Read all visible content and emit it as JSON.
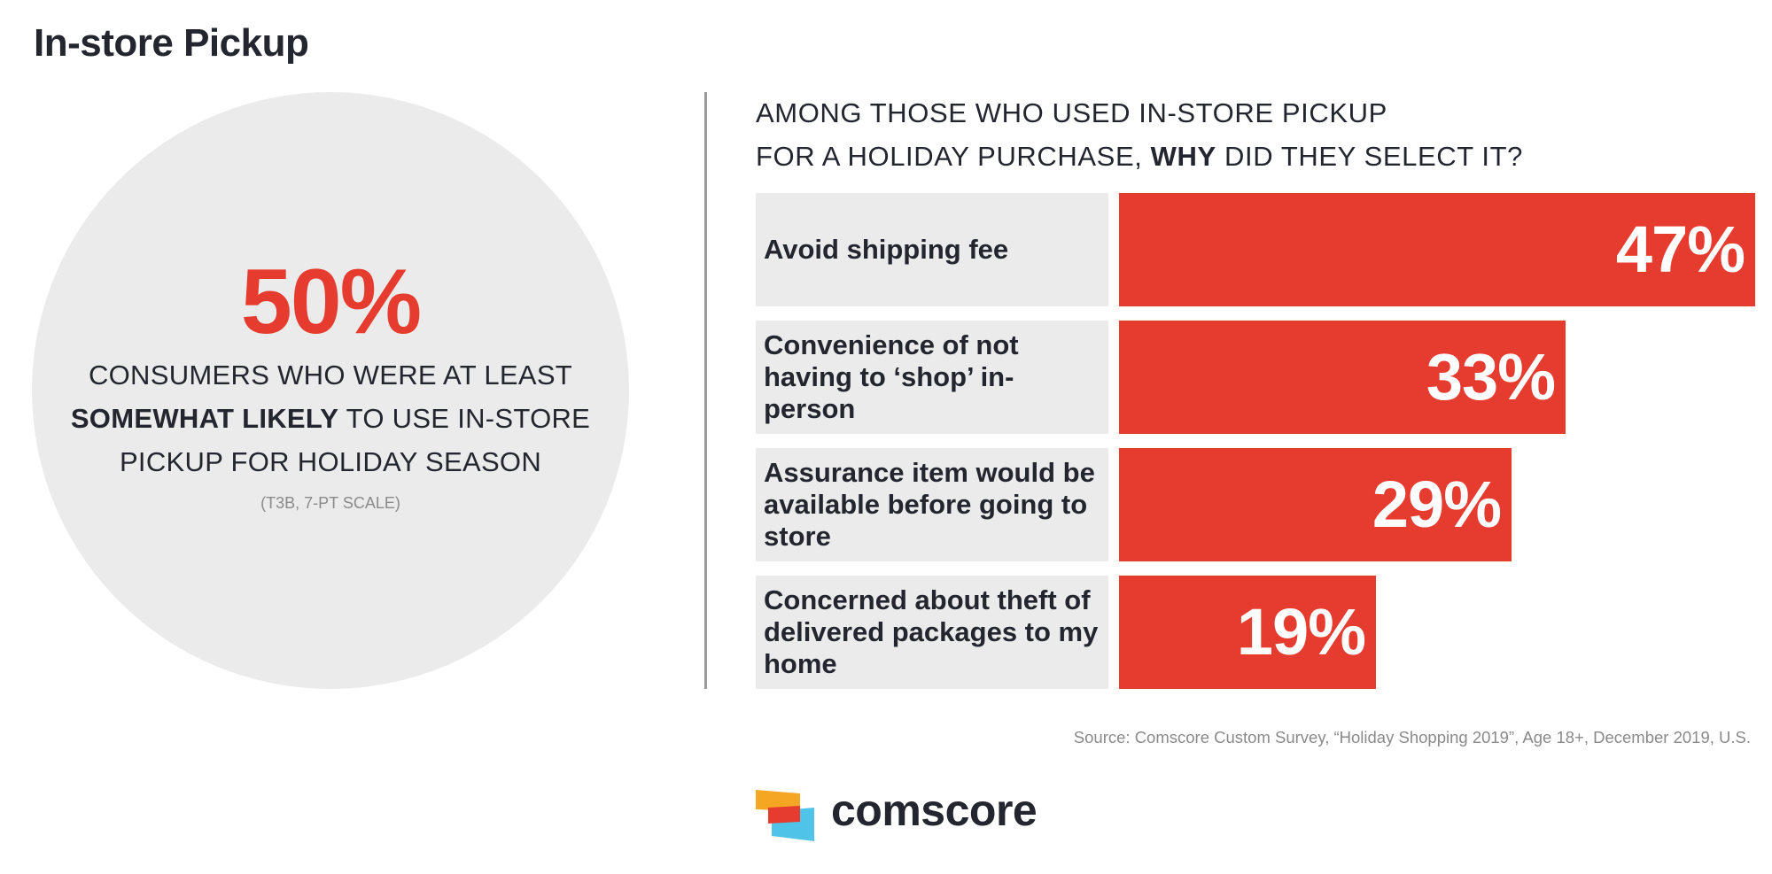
{
  "page_title": "In-store Pickup",
  "left_panel": {
    "stat_value": "50%",
    "description_line1": "CONSUMERS WHO WERE AT LEAST",
    "description_bold": "SOMEWHAT LIKELY",
    "description_line2": "TO USE IN-STORE",
    "description_line3": "PICKUP FOR HOLIDAY SEASON",
    "note": "(T3B, 7-PT SCALE)"
  },
  "question": {
    "line1": "AMONG THOSE WHO USED IN-STORE PICKUP",
    "line2_prefix": "FOR A HOLIDAY PURCHASE,",
    "line2_bold": "WHY",
    "line2_suffix": "DID THEY SELECT IT?"
  },
  "chart_data": {
    "type": "bar",
    "orientation": "horizontal",
    "categories": [
      "Avoid shipping fee",
      "Convenience of not having to ‘shop’ in-person",
      "Assurance item would be available before going to store",
      "Concerned about theft of delivered packages to my home"
    ],
    "values": [
      47,
      33,
      29,
      19
    ],
    "value_labels": [
      "47%",
      "33%",
      "29%",
      "19%"
    ],
    "unit": "%",
    "xlim": [
      0,
      47
    ],
    "bar_color": "#e63c2f",
    "label_background": "#ebebeb"
  },
  "source": "Source: Comscore Custom Survey, “Holiday Shopping 2019”, Age 18+, December 2019, U.S.",
  "brand": {
    "name": "comscore",
    "colors": {
      "orange": "#f5a623",
      "red": "#e63c2f",
      "blue": "#4fc3e8"
    }
  }
}
